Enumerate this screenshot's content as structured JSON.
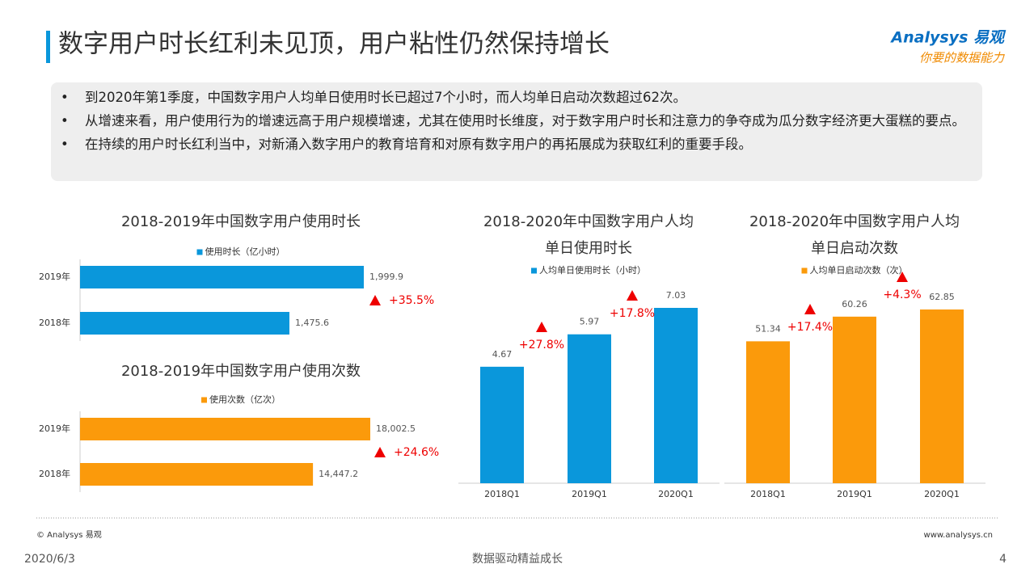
{
  "header": {
    "title": "数字用户时长红利未见顶，用户粘性仍然保持增长"
  },
  "logo": {
    "name": "Analysys 易观",
    "slogan": "你要的数据能力"
  },
  "bullets": [
    "到2020年第1季度，中国数字用户人均单日使用时长已超过7个小时，而人均单日启动次数超过62次。",
    "从增速来看，用户使用行为的增速远高于用户规模增速，尤其在使用时长维度，对于数字用户时长和注意力的争夺成为瓜分数字经济更大蛋糕的要点。",
    "在持续的用户时长红利当中，对新涌入数字用户的教育培育和对原有数字用户的再拓展成为获取红利的重要手段。"
  ],
  "chart_data": [
    {
      "type": "barh",
      "title": [
        "2018-2019年中国数字用户使用时长"
      ],
      "categories": [
        "2019年",
        "2018年"
      ],
      "series": [
        {
          "name": "使用时长（亿小时）",
          "color": "#0a97db",
          "values": [
            1999.9,
            1475.6
          ],
          "value_labels": [
            "1,999.9",
            "1,475.6"
          ]
        }
      ],
      "annotations": [
        "+35.5%"
      ]
    },
    {
      "type": "barh",
      "title": [
        "2018-2019年中国数字用户使用次数"
      ],
      "categories": [
        "2019年",
        "2018年"
      ],
      "series": [
        {
          "name": "使用次数（亿次）",
          "color": "#fb9a0b",
          "values": [
            18002.5,
            14447.2
          ],
          "value_labels": [
            "18,002.5",
            "14,447.2"
          ]
        }
      ],
      "annotations": [
        "+24.6%"
      ]
    },
    {
      "type": "bar",
      "title": [
        "2018-2020年中国数字用户人均",
        "单日使用时长"
      ],
      "categories": [
        "2018Q1",
        "2019Q1",
        "2020Q1"
      ],
      "series": [
        {
          "name": "人均单日使用时长（小时）",
          "color": "#0a97db",
          "values": [
            4.67,
            5.97,
            7.03
          ]
        }
      ],
      "annotations": [
        "+27.8%",
        "+17.8%"
      ]
    },
    {
      "type": "bar",
      "title": [
        "2018-2020年中国数字用户人均",
        "单日启动次数"
      ],
      "categories": [
        "2018Q1",
        "2019Q1",
        "2020Q1"
      ],
      "series": [
        {
          "name": "人均单日启动次数（次）",
          "color": "#fb9a0b",
          "values": [
            51.34,
            60.26,
            62.85
          ]
        }
      ],
      "annotations": [
        "+17.4%",
        "+4.3%"
      ]
    }
  ],
  "footer": {
    "copyright": "© Analysys 易观",
    "url": "www.analysys.cn",
    "date": "2020/6/3",
    "slogan": "数据驱动精益成长",
    "page": "4"
  }
}
